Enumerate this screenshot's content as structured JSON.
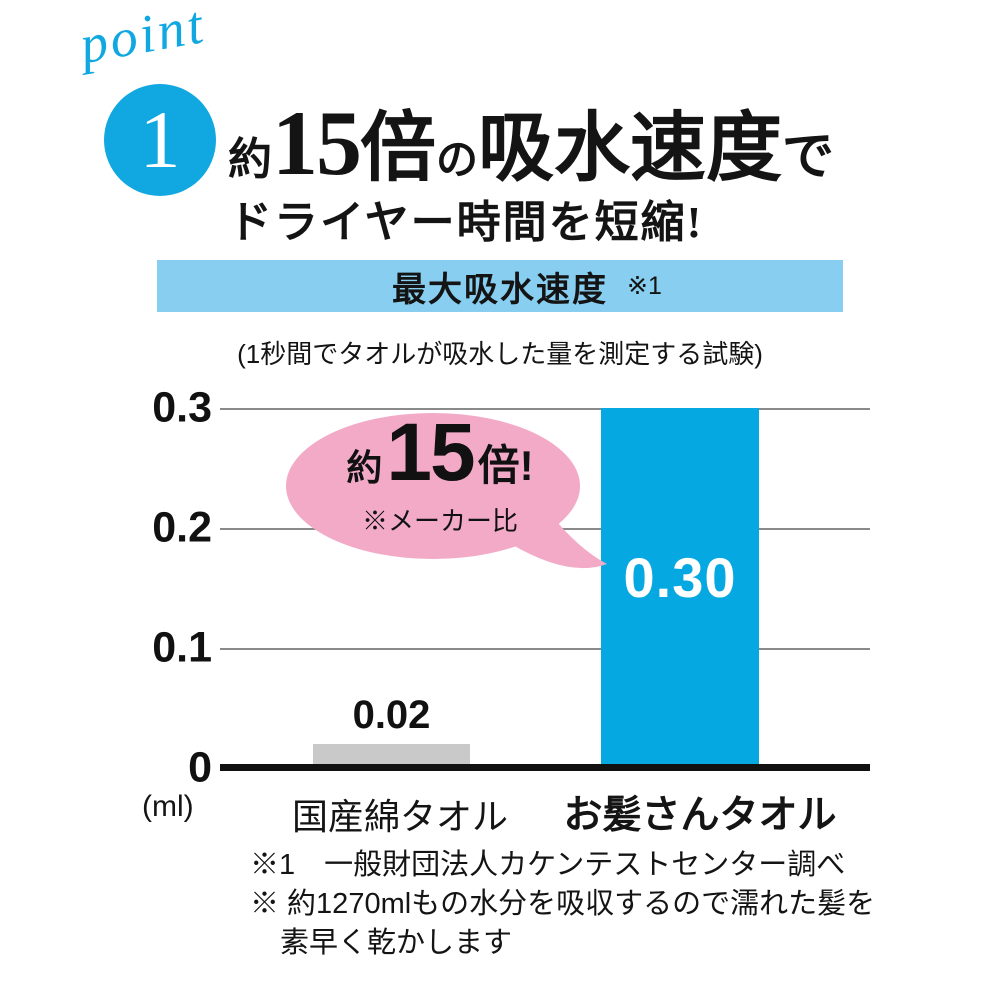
{
  "header": {
    "point_label": "point",
    "point_number": "1",
    "title_parts": [
      "約",
      "15",
      "倍",
      "の",
      "吸水速度",
      "で"
    ],
    "subtitle": "ドライヤー時間を短縮!"
  },
  "banner": {
    "label": "最大吸水速度",
    "note_ref": "※1"
  },
  "method_note": "(1秒間でタオルが吸水した量を測定する試験)",
  "bubble": {
    "prefix": "約",
    "number": "15",
    "suffix": "倍!",
    "note": "※メーカー比"
  },
  "chart_data": {
    "type": "bar",
    "title": "最大吸水速度 ※1",
    "categories": [
      "国産綿タオル",
      "お髪さんタオル"
    ],
    "values": [
      0.02,
      0.3
    ],
    "bar_labels": [
      "0.02",
      "0.30"
    ],
    "bar_colors": [
      "#c9c9ca",
      "#06a8e2"
    ],
    "unit": "(ml)",
    "yticks": [
      0,
      0.1,
      0.2,
      0.3
    ],
    "ytick_labels": [
      "0",
      "0.1",
      "0.2",
      "0.3"
    ],
    "ylim": [
      0,
      0.3
    ],
    "grid": true,
    "legend": "none",
    "annotation": "約15倍! ※メーカー比"
  },
  "footnotes": {
    "line1": "※1　一般財団法人カケンテストセンター調べ",
    "line2": "※ 約1270mlもの水分を吸収するので濡れた髪を",
    "line3": "素早く乾かします"
  },
  "colors": {
    "accent_blue": "#11a8e1",
    "banner_blue": "#87cef0",
    "bar_blue": "#06a8e2",
    "bar_gray": "#c9c9ca",
    "bubble_pink": "#f2aac7",
    "gridline_gray": "#8a8a8a",
    "text_black": "#111111",
    "bar_value_white": "#ffffff"
  }
}
